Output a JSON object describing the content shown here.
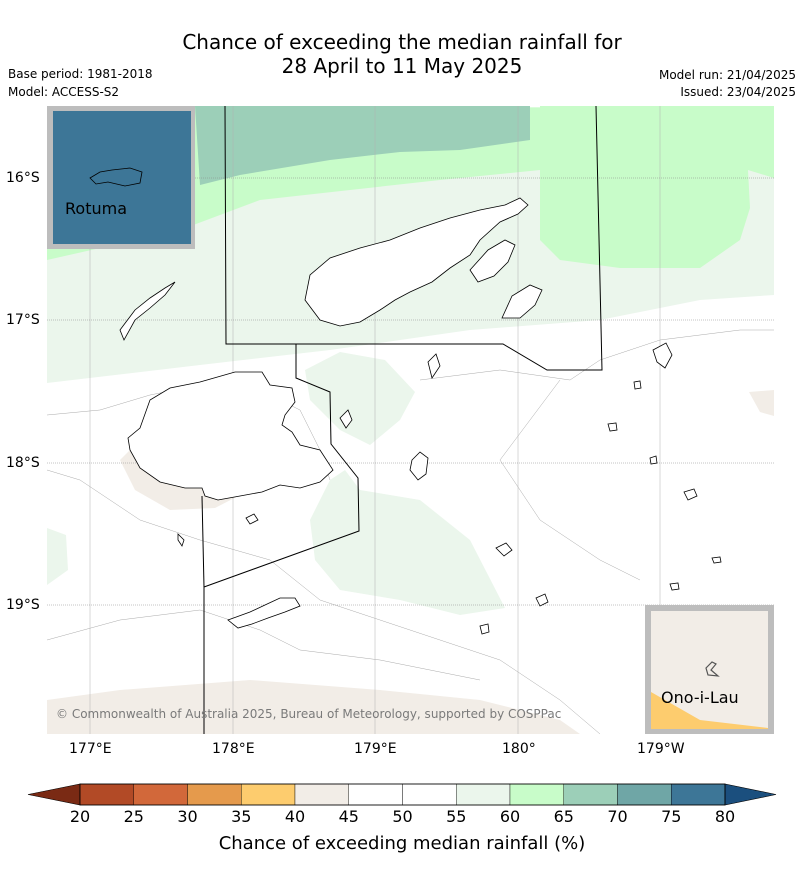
{
  "header": {
    "title_line1": "Chance of exceeding the median rainfall for",
    "title_line2": "28 April to 11 May 2025",
    "base_period": "Base period: 1981-2018",
    "model": "Model: ACCESS-S2",
    "model_run": "Model run: 21/04/2025",
    "issued": "Issued: 23/04/2025"
  },
  "map": {
    "region": "Fiji",
    "lat_ticks": [
      "16°S",
      "17°S",
      "18°S",
      "19°S"
    ],
    "lon_ticks": [
      "177°E",
      "178°E",
      "179°E",
      "180°",
      "179°W"
    ],
    "insets": {
      "rotuma": "Rotuma",
      "onoilau": "Ono-i-Lau"
    },
    "copyright": "© Commonwealth of Australia 2025, Bureau of Meteorology, supported by COSPPac"
  },
  "colorbar": {
    "labels": [
      "20",
      "25",
      "30",
      "35",
      "40",
      "45",
      "50",
      "55",
      "60",
      "65",
      "70",
      "75",
      "80"
    ],
    "colors": [
      "#7a2a14",
      "#b24a26",
      "#d2683a",
      "#e59a4c",
      "#fdcc6e",
      "#f2ede7",
      "#ffffff",
      "#ffffff",
      "#ebf6ec",
      "#c8fcc9",
      "#9ccfb8",
      "#6fa6a6",
      "#3d7697",
      "#1b4f7e"
    ],
    "title": "Chance of exceeding median rainfall (%)"
  }
}
